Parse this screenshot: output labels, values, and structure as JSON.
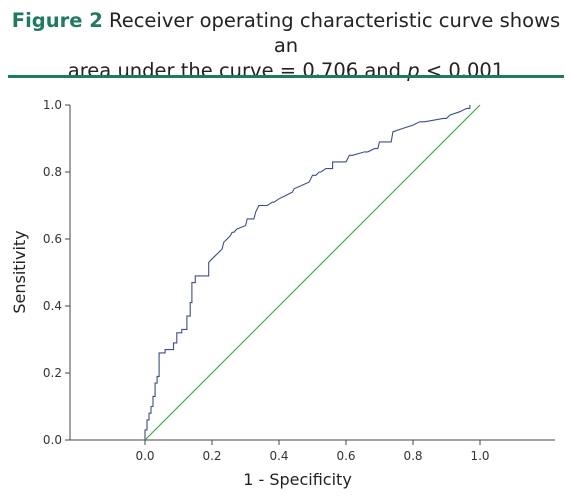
{
  "caption": {
    "figure_label": "Figure 2",
    "line1_text": "Receiver operating characteristic curve shows an",
    "line2_text": "area under the curve = 0.706 and",
    "line2_p": "p",
    "line2_end": "< 0.001"
  },
  "chart_data": {
    "type": "line",
    "xlabel": "1 - Specificity",
    "ylabel": "Sensitivity",
    "xlim": [
      0.0,
      1.0
    ],
    "ylim": [
      0.0,
      1.0
    ],
    "x_ticks": [
      "0.0",
      "0.2",
      "0.4",
      "0.6",
      "0.8",
      "1.0"
    ],
    "y_ticks": [
      "0.0",
      "0.2",
      "0.4",
      "0.6",
      "0.8",
      "1.0"
    ],
    "grid": false,
    "series": [
      {
        "role": "roc",
        "color": "#3d4f8a",
        "x": [
          0.0,
          0.0,
          0.006,
          0.006,
          0.012,
          0.012,
          0.018,
          0.018,
          0.024,
          0.024,
          0.03,
          0.03,
          0.036,
          0.036,
          0.042,
          0.042,
          0.06,
          0.06,
          0.085,
          0.085,
          0.095,
          0.095,
          0.11,
          0.11,
          0.125,
          0.125,
          0.135,
          0.135,
          0.14,
          0.14,
          0.15,
          0.15,
          0.19,
          0.19,
          0.21,
          0.23,
          0.235,
          0.255,
          0.26,
          0.265,
          0.275,
          0.3,
          0.305,
          0.325,
          0.33,
          0.34,
          0.365,
          0.38,
          0.385,
          0.4,
          0.42,
          0.44,
          0.445,
          0.49,
          0.5,
          0.51,
          0.52,
          0.525,
          0.54,
          0.56,
          0.56,
          0.6,
          0.61,
          0.62,
          0.655,
          0.665,
          0.685,
          0.695,
          0.7,
          0.735,
          0.74,
          0.77,
          0.8,
          0.82,
          0.835,
          0.89,
          0.9,
          0.91,
          0.94,
          0.96,
          0.97,
          0.97
        ],
        "y": [
          0.0,
          0.03,
          0.03,
          0.06,
          0.06,
          0.08,
          0.08,
          0.1,
          0.1,
          0.13,
          0.13,
          0.17,
          0.17,
          0.19,
          0.19,
          0.26,
          0.26,
          0.27,
          0.27,
          0.29,
          0.29,
          0.32,
          0.32,
          0.33,
          0.33,
          0.37,
          0.37,
          0.41,
          0.41,
          0.47,
          0.47,
          0.49,
          0.49,
          0.53,
          0.55,
          0.57,
          0.59,
          0.61,
          0.62,
          0.62,
          0.63,
          0.64,
          0.66,
          0.66,
          0.68,
          0.7,
          0.7,
          0.71,
          0.71,
          0.72,
          0.73,
          0.74,
          0.75,
          0.77,
          0.79,
          0.79,
          0.8,
          0.8,
          0.81,
          0.81,
          0.83,
          0.83,
          0.85,
          0.85,
          0.86,
          0.86,
          0.87,
          0.87,
          0.89,
          0.89,
          0.92,
          0.93,
          0.94,
          0.95,
          0.95,
          0.96,
          0.96,
          0.97,
          0.98,
          0.99,
          0.99,
          1.0
        ]
      },
      {
        "role": "reference",
        "color": "#2fae3a",
        "x": [
          0.0,
          1.0
        ],
        "y": [
          0.0,
          1.0
        ]
      }
    ]
  }
}
